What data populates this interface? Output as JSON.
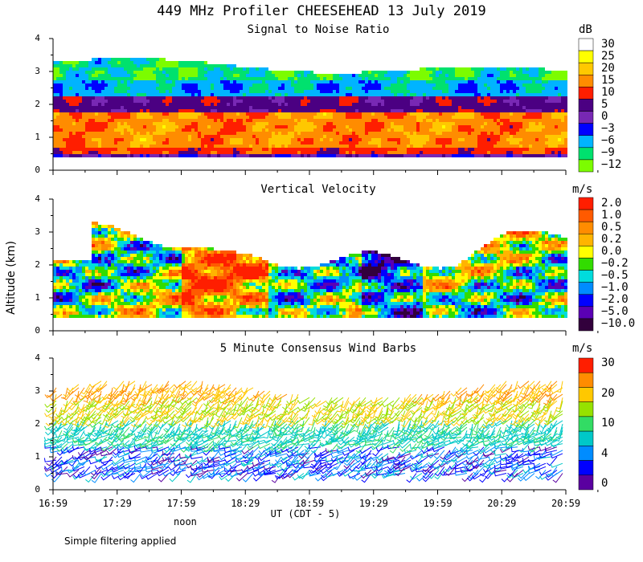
{
  "title": "449 MHz Profiler CHEESEHEAD 13 July 2019",
  "y_axis_label": "Altitude (km)",
  "x_axis_label": "UT  (CDT - 5)",
  "noon_label": "noon",
  "footnote": "Simple filtering applied",
  "x_ticks": [
    "16:59",
    "17:29",
    "17:59",
    "18:29",
    "18:59",
    "19:29",
    "19:59",
    "20:29",
    "20:59"
  ],
  "altitude_ticks": [
    "0",
    "1",
    "2",
    "3",
    "4"
  ],
  "chart_data": [
    {
      "type": "heatmap",
      "title": "Signal to Noise Ratio",
      "units": "dB",
      "ylabel": "Altitude (km)",
      "ylim": [
        0,
        4
      ],
      "x_range": [
        "16:59",
        "20:59"
      ],
      "colorbar_ticks": [
        "30",
        "25",
        "20",
        "15",
        "10",
        "5",
        "0",
        "−3",
        "−6",
        "−9",
        "−12"
      ],
      "colorbar_colors": [
        "#ffffff",
        "#ffff00",
        "#ffc800",
        "#ff8c00",
        "#ff1e00",
        "#4b0082",
        "#7828b4",
        "#0000ff",
        "#00b4ff",
        "#00e16e",
        "#7cfc00"
      ],
      "profile": [
        {
          "altitude_km_range": [
            0.4,
            0.55
          ],
          "snr_db_approx": 5
        },
        {
          "altitude_km_range": [
            0.55,
            1.8
          ],
          "snr_db_approx": 15
        },
        {
          "altitude_km_range": [
            1.8,
            2.2
          ],
          "snr_db_approx": 3
        },
        {
          "altitude_km_range": [
            2.2,
            3.5
          ],
          "snr_db_approx": -6
        }
      ]
    },
    {
      "type": "heatmap",
      "title": "Vertical Velocity",
      "units": "m/s",
      "ylabel": "Altitude (km)",
      "ylim": [
        0,
        4
      ],
      "x_range": [
        "16:59",
        "20:59"
      ],
      "colorbar_ticks": [
        "2.0",
        "1.0",
        "0.5",
        "0.2",
        "0.0",
        "−0.2",
        "−0.5",
        "−1.0",
        "−2.0",
        "−5.0",
        "−10.0"
      ],
      "colorbar_colors": [
        "#ff1e00",
        "#ff5a00",
        "#ff8c00",
        "#ffb400",
        "#ffff00",
        "#32dc00",
        "#00dcdc",
        "#008cff",
        "#0000ff",
        "#5a00b4",
        "#32003c"
      ],
      "data_altitude_km_range": [
        0.4,
        3.2
      ]
    },
    {
      "type": "wind_barbs",
      "title": "5 Minute Consensus Wind Barbs",
      "units": "m/s",
      "ylabel": "Altitude (km)",
      "ylim": [
        0,
        4
      ],
      "x_range": [
        "16:59",
        "20:59"
      ],
      "colorbar_ticks": [
        "30",
        "20",
        "10",
        "4",
        "0"
      ],
      "colorbar_colors": [
        "#ff1e00",
        "#ff8c00",
        "#ffc800",
        "#96e100",
        "#32dc64",
        "#00c8c8",
        "#008cff",
        "#0000ff",
        "#5a00a0"
      ],
      "speed_profile": [
        {
          "altitude_km": 0.5,
          "speed_ms_approx": 3
        },
        {
          "altitude_km": 1.5,
          "speed_ms_approx": 6
        },
        {
          "altitude_km": 2.5,
          "speed_ms_approx": 12
        },
        {
          "altitude_km": 3.2,
          "speed_ms_approx": 18
        }
      ]
    }
  ]
}
